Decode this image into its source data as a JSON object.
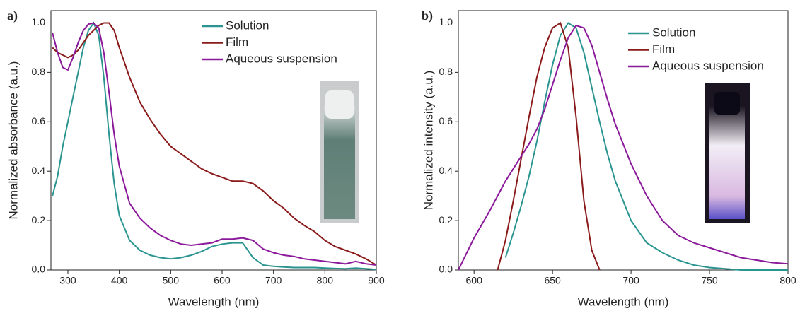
{
  "chart_data": [
    {
      "type": "line",
      "panel_label": "a)",
      "x_label": "Wavelength (nm)",
      "y_label": "Normalized absorbance (a.u.)",
      "x": [
        270,
        280,
        290,
        300,
        310,
        320,
        330,
        340,
        350,
        360,
        370,
        380,
        390,
        400,
        420,
        440,
        460,
        480,
        500,
        520,
        540,
        560,
        580,
        600,
        620,
        640,
        660,
        680,
        700,
        720,
        740,
        760,
        780,
        800,
        820,
        840,
        860,
        880,
        900
      ],
      "series": [
        {
          "name": "Solution",
          "color": "#2a9590",
          "values": [
            0.3,
            0.38,
            0.5,
            0.6,
            0.7,
            0.8,
            0.9,
            0.97,
            1.0,
            0.95,
            0.78,
            0.55,
            0.35,
            0.22,
            0.12,
            0.08,
            0.06,
            0.05,
            0.045,
            0.05,
            0.06,
            0.075,
            0.095,
            0.105,
            0.11,
            0.11,
            0.05,
            0.02,
            0.015,
            0.012,
            0.01,
            0.01,
            0.01,
            0.008,
            0.006,
            0.005,
            0.008,
            0.005,
            0.002
          ]
        },
        {
          "name": "Film",
          "color": "#8b1a1a",
          "values": [
            0.9,
            0.88,
            0.87,
            0.86,
            0.87,
            0.89,
            0.92,
            0.95,
            0.97,
            0.99,
            1.0,
            1.0,
            0.97,
            0.9,
            0.78,
            0.68,
            0.61,
            0.55,
            0.5,
            0.47,
            0.44,
            0.41,
            0.39,
            0.375,
            0.36,
            0.36,
            0.35,
            0.32,
            0.28,
            0.25,
            0.21,
            0.18,
            0.155,
            0.12,
            0.095,
            0.08,
            0.065,
            0.045,
            0.02
          ]
        },
        {
          "name": "Aqueous suspension",
          "color": "#8b1a9b",
          "values": [
            0.96,
            0.88,
            0.82,
            0.81,
            0.86,
            0.92,
            0.97,
            0.995,
            1.0,
            0.98,
            0.88,
            0.72,
            0.55,
            0.42,
            0.27,
            0.21,
            0.17,
            0.14,
            0.12,
            0.105,
            0.1,
            0.105,
            0.11,
            0.125,
            0.125,
            0.13,
            0.12,
            0.085,
            0.07,
            0.06,
            0.055,
            0.045,
            0.04,
            0.035,
            0.03,
            0.025,
            0.035,
            0.025,
            0.02
          ]
        }
      ],
      "xlim": [
        267,
        900
      ],
      "xticks": [
        300,
        400,
        500,
        600,
        700,
        800,
        900
      ],
      "ylim": [
        0,
        1.05
      ],
      "yticks": [
        {
          "value": 0,
          "label": "0.0"
        },
        0.2,
        0.4,
        0.6,
        0.8,
        {
          "value": 1,
          "label": "1.0"
        }
      ]
    },
    {
      "type": "line",
      "panel_label": "b)",
      "x_label": "Wavelength (nm)",
      "y_label": "Normalized intensity (a.u.)",
      "x": [
        590,
        600,
        610,
        615,
        620,
        625,
        630,
        635,
        640,
        645,
        650,
        655,
        660,
        665,
        670,
        675,
        680,
        685,
        690,
        700,
        710,
        720,
        730,
        740,
        750,
        760,
        770,
        780,
        790,
        800
      ],
      "series": [
        {
          "name": "Solution",
          "color": "#2a9590",
          "values": [
            null,
            null,
            null,
            null,
            0.05,
            0.15,
            0.26,
            0.38,
            0.52,
            0.68,
            0.83,
            0.95,
            1.0,
            0.98,
            0.88,
            0.74,
            0.6,
            0.47,
            0.36,
            0.2,
            0.11,
            0.07,
            0.04,
            0.02,
            0.01,
            0.005,
            0,
            0,
            0,
            0
          ]
        },
        {
          "name": "Film",
          "color": "#8b1a1a",
          "values": [
            null,
            null,
            null,
            0,
            0.12,
            0.28,
            0.45,
            0.62,
            0.78,
            0.9,
            0.98,
            1.0,
            0.9,
            0.62,
            0.28,
            0.08,
            0,
            null,
            null,
            null,
            null,
            null,
            null,
            null,
            null,
            null,
            null,
            null,
            null,
            null
          ]
        },
        {
          "name": "Aqueous suspension",
          "color": "#8b1a9b",
          "values": [
            0,
            0.13,
            0.24,
            0.3,
            0.36,
            0.41,
            0.46,
            0.51,
            0.57,
            0.65,
            0.75,
            0.85,
            0.94,
            0.99,
            0.98,
            0.91,
            0.8,
            0.69,
            0.59,
            0.43,
            0.3,
            0.2,
            0.14,
            0.11,
            0.09,
            0.07,
            0.05,
            0.04,
            0.03,
            0.025
          ]
        }
      ],
      "xlim": [
        590,
        800
      ],
      "xticks": [
        600,
        650,
        700,
        750,
        800
      ],
      "ylim": [
        0,
        1.05
      ],
      "yticks": [
        {
          "value": 0,
          "label": "0.0"
        },
        0.2,
        0.4,
        0.6,
        0.8,
        {
          "value": 1,
          "label": "1.0"
        }
      ]
    }
  ]
}
